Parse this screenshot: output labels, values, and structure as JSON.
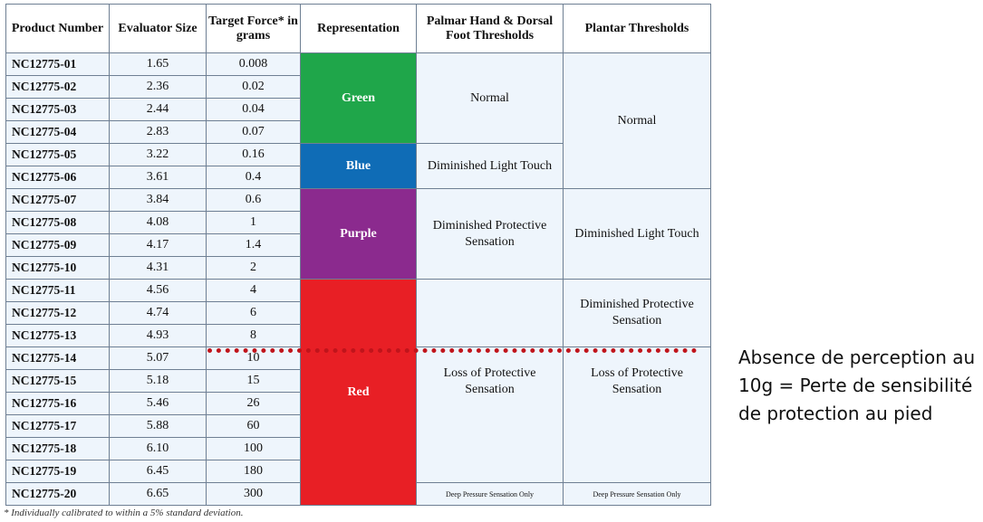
{
  "headers": {
    "product": "Product Number",
    "size": "Evaluator Size",
    "force": "Target Force* in grams",
    "rep": "Representation",
    "palmar": "Palmar Hand & Dorsal Foot Thresholds",
    "plantar": "Plantar Thresholds"
  },
  "rows": [
    {
      "product": "NC12775-01",
      "size": "1.65",
      "force": "0.008"
    },
    {
      "product": "NC12775-02",
      "size": "2.36",
      "force": "0.02"
    },
    {
      "product": "NC12775-03",
      "size": "2.44",
      "force": "0.04"
    },
    {
      "product": "NC12775-04",
      "size": "2.83",
      "force": "0.07"
    },
    {
      "product": "NC12775-05",
      "size": "3.22",
      "force": "0.16"
    },
    {
      "product": "NC12775-06",
      "size": "3.61",
      "force": "0.4"
    },
    {
      "product": "NC12775-07",
      "size": "3.84",
      "force": "0.6"
    },
    {
      "product": "NC12775-08",
      "size": "4.08",
      "force": "1"
    },
    {
      "product": "NC12775-09",
      "size": "4.17",
      "force": "1.4"
    },
    {
      "product": "NC12775-10",
      "size": "4.31",
      "force": "2"
    },
    {
      "product": "NC12775-11",
      "size": "4.56",
      "force": "4"
    },
    {
      "product": "NC12775-12",
      "size": "4.74",
      "force": "6"
    },
    {
      "product": "NC12775-13",
      "size": "4.93",
      "force": "8"
    },
    {
      "product": "NC12775-14",
      "size": "5.07",
      "force": "10"
    },
    {
      "product": "NC12775-15",
      "size": "5.18",
      "force": "15"
    },
    {
      "product": "NC12775-16",
      "size": "5.46",
      "force": "26"
    },
    {
      "product": "NC12775-17",
      "size": "5.88",
      "force": "60"
    },
    {
      "product": "NC12775-18",
      "size": "6.10",
      "force": "100"
    },
    {
      "product": "NC12775-19",
      "size": "6.45",
      "force": "180"
    },
    {
      "product": "NC12775-20",
      "size": "6.65",
      "force": "300"
    }
  ],
  "representation": [
    {
      "label": "Green",
      "color": "#1fa64a"
    },
    {
      "label": "Blue",
      "color": "#0f6cb6"
    },
    {
      "label": "Purple",
      "color": "#8b2a8e"
    },
    {
      "label": "Red",
      "color": "#e81f25"
    }
  ],
  "palmar": {
    "normal": "Normal",
    "diminished_light_touch": "Diminished Light Touch",
    "diminished_protective": "Diminished Protective Sensation",
    "loss": "Loss of Protective Sensation",
    "deep": "Deep Pressure Sensation Only"
  },
  "plantar": {
    "normal": "Normal",
    "diminished_light_touch": "Diminished Light Touch",
    "diminished_protective": "Diminished Protective Sensation",
    "loss": "Loss of Protective Sensation",
    "deep": "Deep Pressure Sensation Only"
  },
  "footnote": "* Individually calibrated to within a 5% standard deviation.",
  "annotation": "Absence de perception au 10g = Perte de sensibilité de protection au pied",
  "colors": {
    "dashed_line": "#c0141b",
    "cell_bg": "#eef5fc",
    "border": "#6e7f93"
  }
}
